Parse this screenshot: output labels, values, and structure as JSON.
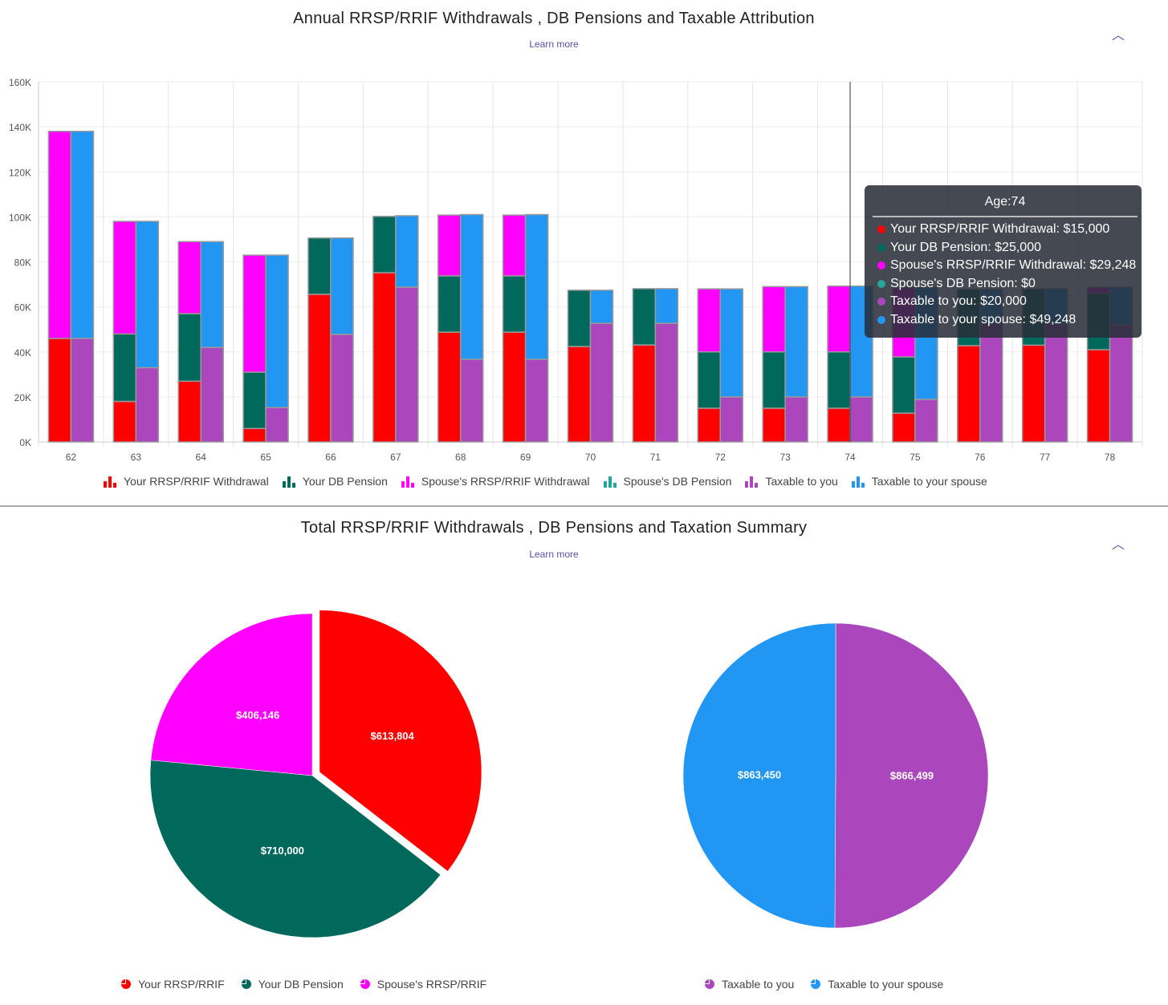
{
  "chart_data": [
    {
      "type": "bar",
      "stacked": true,
      "title": "Annual RRSP/RRIF Withdrawals , DB Pensions and Taxable Attribution",
      "learn_more": "Learn more",
      "categories": [
        "62",
        "63",
        "64",
        "65",
        "66",
        "67",
        "68",
        "69",
        "70",
        "71",
        "72",
        "73",
        "74",
        "75",
        "76",
        "77",
        "78"
      ],
      "ylim": [
        0,
        160000
      ],
      "yticks": [
        "0K",
        "20K",
        "40K",
        "60K",
        "80K",
        "100K",
        "120K",
        "140K",
        "160K"
      ],
      "grid": true,
      "legend_position": "bottom",
      "series": [
        {
          "name": "Your RRSP/RRIF Withdrawal",
          "stack": 1,
          "color": "#ff0000",
          "values": [
            46000,
            18000,
            27000,
            6000,
            65600,
            75200,
            48800,
            48800,
            42400,
            43100,
            15000,
            15000,
            15000,
            12800,
            42800,
            43000,
            41000
          ]
        },
        {
          "name": "Your DB Pension",
          "stack": 1,
          "color": "#00695c",
          "values": [
            0,
            30000,
            30000,
            25000,
            25000,
            25000,
            25000,
            25000,
            25000,
            25000,
            25000,
            25000,
            25000,
            25000,
            25000,
            25000,
            25000
          ]
        },
        {
          "name": "Spouse's RRSP/RRIF Withdrawal",
          "stack": 1,
          "color": "#ff00ff",
          "values": [
            92000,
            50000,
            32000,
            52000,
            0,
            0,
            27000,
            27000,
            0,
            0,
            28000,
            29000,
            29248,
            30700,
            0,
            0,
            2700
          ]
        },
        {
          "name": "Spouse's DB Pension",
          "stack": 1,
          "color": "#26a69a",
          "values": [
            0,
            0,
            0,
            0,
            0,
            0,
            0,
            0,
            0,
            0,
            0,
            0,
            0,
            0,
            0,
            0,
            0
          ]
        },
        {
          "name": "Taxable to you",
          "stack": 2,
          "color": "#ab47bc",
          "values": [
            46000,
            33000,
            42000,
            15300,
            47800,
            68800,
            36700,
            36700,
            52700,
            52700,
            20000,
            20000,
            20000,
            18900,
            52800,
            52500,
            52000
          ]
        },
        {
          "name": "Taxable to your spouse",
          "stack": 2,
          "color": "#2196f3",
          "values": [
            92000,
            65000,
            47000,
            67700,
            42800,
            31700,
            64300,
            64300,
            14700,
            15400,
            48000,
            49000,
            49248,
            49600,
            15000,
            15500,
            16700
          ]
        }
      ],
      "tooltip": {
        "header": "Age:74",
        "rows": [
          "Your RRSP/RRIF Withdrawal: $15,000",
          "Your DB Pension: $25,000",
          "Spouse's RRSP/RRIF Withdrawal: $29,248",
          "Spouse's DB Pension: $0",
          "Taxable to you: $20,000",
          "Taxable to your spouse: $49,248"
        ]
      }
    },
    {
      "type": "pie",
      "title": "Total RRSP/RRIF Withdrawals , DB Pensions and Taxation Summary",
      "learn_more": "Learn more",
      "slices": [
        {
          "name": "Your RRSP/RRIF",
          "value": 613804,
          "label": "$613,804",
          "color": "#ff0000"
        },
        {
          "name": "Your DB Pension",
          "value": 710000,
          "label": "$710,000",
          "color": "#00695c"
        },
        {
          "name": "Spouse's RRSP/RRIF",
          "value": 406146,
          "label": "$406,146",
          "color": "#ff00ff"
        }
      ]
    },
    {
      "type": "pie",
      "slices": [
        {
          "name": "Taxable to you",
          "value": 866499,
          "label": "$866,499",
          "color": "#ab47bc"
        },
        {
          "name": "Taxable to your spouse",
          "value": 863450,
          "label": "$863,450",
          "color": "#2196f3"
        }
      ]
    }
  ]
}
